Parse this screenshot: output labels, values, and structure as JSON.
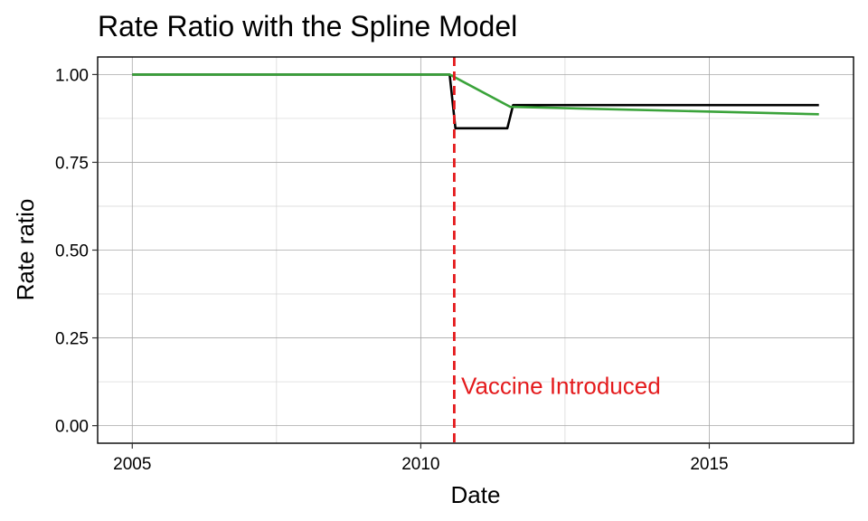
{
  "chart_data": {
    "type": "line",
    "title": "Rate Ratio with the Spline Model",
    "xlabel": "Date",
    "ylabel": "Rate ratio",
    "xlim": [
      2004.4,
      2017.5
    ],
    "ylim": [
      -0.05,
      1.05
    ],
    "x_ticks": [
      2005,
      2010,
      2015
    ],
    "x_tick_labels": [
      "2005",
      "2010",
      "2015"
    ],
    "y_ticks": [
      0,
      0.25,
      0.5,
      0.75,
      1.0
    ],
    "y_tick_labels": [
      "0.00",
      "0.25",
      "0.50",
      "0.75",
      "1.00"
    ],
    "grid": true,
    "series": [
      {
        "color": "#000000",
        "points": [
          [
            2005.0,
            1.0
          ],
          [
            2010.5,
            1.0
          ],
          [
            2010.6,
            0.847
          ],
          [
            2011.5,
            0.847
          ],
          [
            2011.6,
            0.913
          ],
          [
            2016.9,
            0.913
          ]
        ]
      },
      {
        "color": "#3aa33a",
        "points": [
          [
            2005.0,
            1.0
          ],
          [
            2010.5,
            1.0
          ],
          [
            2011.55,
            0.908
          ],
          [
            2016.9,
            0.887
          ]
        ]
      }
    ],
    "vline": {
      "x": 2010.58,
      "color": "#e41a1c"
    },
    "annotation": {
      "text": "Vaccine Introduced",
      "x": 2010.7,
      "y": 0.09,
      "color": "#e41a1c"
    }
  }
}
